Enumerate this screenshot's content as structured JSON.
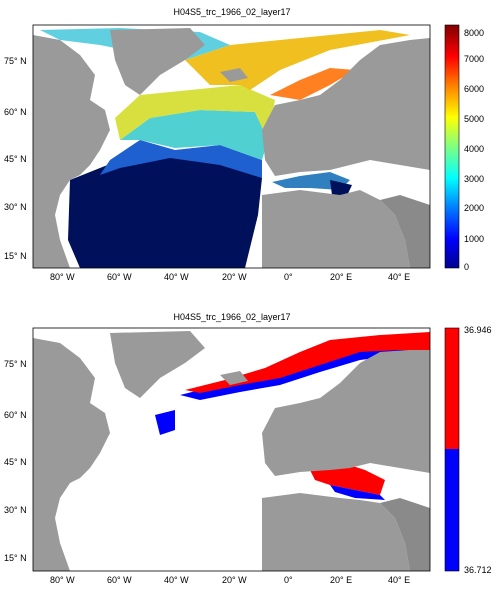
{
  "maps": [
    {
      "title": "H04S5_trc_1966_02_layer17",
      "lat_ticks": [
        "75° N",
        "60° N",
        "45° N",
        "30° N",
        "15° N"
      ],
      "lon_ticks": [
        "80° W",
        "60° W",
        "40° W",
        "20° W",
        "0°",
        "20° E",
        "40° E"
      ],
      "colorbar": {
        "type": "continuous",
        "colormap": "jet",
        "ticks": [
          "8000",
          "7000",
          "6000",
          "5000",
          "4000",
          "3000",
          "2000",
          "1000",
          "0"
        ],
        "range": [
          0,
          8000
        ]
      }
    },
    {
      "title": "H04S5_trc_1966_02_layer17",
      "lat_ticks": [
        "75° N",
        "60° N",
        "45° N",
        "30° N",
        "15° N"
      ],
      "lon_ticks": [
        "80° W",
        "60° W",
        "40° W",
        "20° W",
        "0°",
        "20° E",
        "40° E"
      ],
      "colorbar": {
        "type": "binary",
        "colors": [
          "#ff0000",
          "#0000ff"
        ],
        "ticks": [
          "36.946",
          "36.712"
        ],
        "range": [
          36.712,
          36.946
        ]
      }
    }
  ],
  "colors": {
    "land": "#9a9a9a",
    "ocean_nodata": "#ffffff",
    "deep_navy": "#00105a",
    "red_class": "#ff0000",
    "blue_class": "#0000ff"
  }
}
